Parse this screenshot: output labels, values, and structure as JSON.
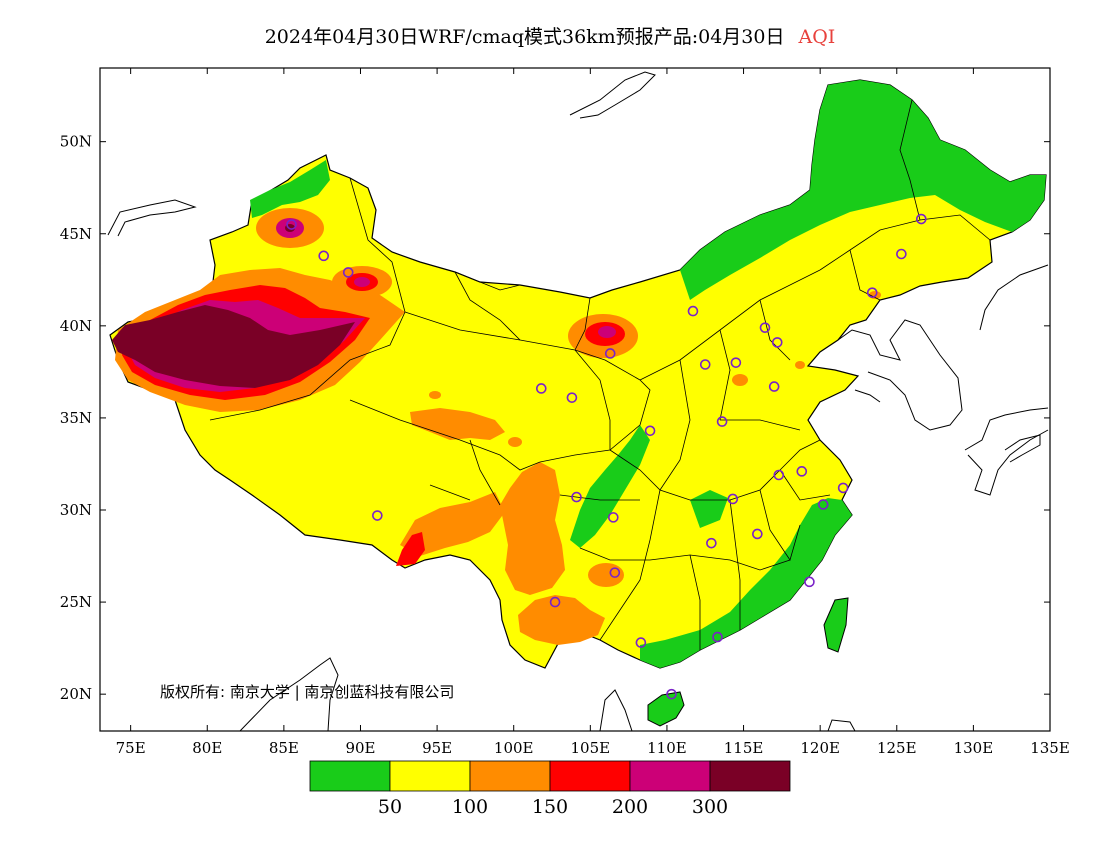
{
  "title": {
    "main": "2024年04月30日WRF/cmaq模式36km预报产品:04月30日",
    "variable": "AQI",
    "variable_color": "#e8413c"
  },
  "map": {
    "region": "China",
    "lon_range": [
      73,
      135
    ],
    "lat_range": [
      18,
      54
    ],
    "lon_ticks": [
      75,
      80,
      85,
      90,
      95,
      100,
      105,
      110,
      115,
      120,
      125,
      130,
      135
    ],
    "lon_tick_labels": [
      "75E",
      "80E",
      "85E",
      "90E",
      "95E",
      "100E",
      "105E",
      "110E",
      "115E",
      "120E",
      "125E",
      "130E",
      "135E"
    ],
    "lat_ticks": [
      20,
      25,
      30,
      35,
      40,
      45,
      50
    ],
    "lat_tick_labels": [
      "20N",
      "25N",
      "30N",
      "35N",
      "40N",
      "45N",
      "50N"
    ],
    "copyright": "版权所有: 南京大学 | 南京创蓝科技有限公司"
  },
  "legend": {
    "colors": [
      "#19cc19",
      "#ffff00",
      "#ff8c00",
      "#ff0000",
      "#cc0077",
      "#7a0026"
    ],
    "labels": [
      "50",
      "100",
      "150",
      "200",
      "300"
    ]
  },
  "city_markers": [
    [
      116.4,
      39.9
    ],
    [
      117.2,
      39.1
    ],
    [
      114.5,
      38.0
    ],
    [
      112.5,
      37.9
    ],
    [
      111.7,
      40.8
    ],
    [
      123.4,
      41.8
    ],
    [
      125.3,
      43.9
    ],
    [
      126.6,
      45.8
    ],
    [
      117.0,
      36.7
    ],
    [
      113.6,
      34.8
    ],
    [
      118.8,
      32.1
    ],
    [
      117.3,
      31.9
    ],
    [
      120.2,
      30.3
    ],
    [
      121.5,
      31.2
    ],
    [
      114.3,
      30.6
    ],
    [
      112.9,
      28.2
    ],
    [
      115.9,
      28.7
    ],
    [
      119.3,
      26.1
    ],
    [
      113.3,
      23.1
    ],
    [
      108.3,
      22.8
    ],
    [
      110.3,
      20.0
    ],
    [
      106.6,
      26.6
    ],
    [
      102.7,
      25.0
    ],
    [
      104.1,
      30.7
    ],
    [
      106.5,
      29.6
    ],
    [
      108.9,
      34.3
    ],
    [
      103.8,
      36.1
    ],
    [
      101.8,
      36.6
    ],
    [
      106.3,
      38.5
    ],
    [
      87.6,
      43.8
    ],
    [
      91.1,
      29.7
    ],
    [
      85.5,
      45.5
    ],
    [
      89.2,
      42.9
    ]
  ]
}
